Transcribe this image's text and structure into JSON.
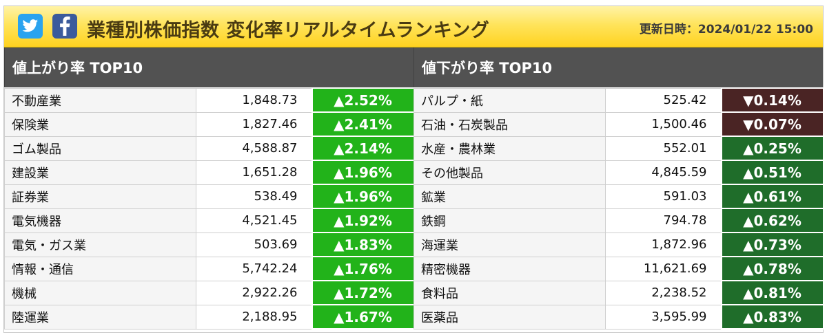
{
  "header": {
    "title": "業種別株価指数 変化率リアルタイムランキング",
    "updated": "更新日時：2024/01/22 15:00",
    "icons": [
      "twitter-icon",
      "facebook-icon"
    ]
  },
  "gainers": {
    "heading": "値上がり率 TOP10",
    "rows": [
      {
        "name": "不動産業",
        "value": "1,848.73",
        "change": "▲2.52%"
      },
      {
        "name": "保険業",
        "value": "1,827.46",
        "change": "▲2.41%"
      },
      {
        "name": "ゴム製品",
        "value": "4,588.87",
        "change": "▲2.14%"
      },
      {
        "name": "建設業",
        "value": "1,651.28",
        "change": "▲1.96%"
      },
      {
        "name": "証券業",
        "value": "538.49",
        "change": "▲1.96%"
      },
      {
        "name": "電気機器",
        "value": "4,521.45",
        "change": "▲1.92%"
      },
      {
        "name": "電気・ガス業",
        "value": "503.69",
        "change": "▲1.83%"
      },
      {
        "name": "情報・通信",
        "value": "5,742.24",
        "change": "▲1.76%"
      },
      {
        "name": "機械",
        "value": "2,922.26",
        "change": "▲1.72%"
      },
      {
        "name": "陸運業",
        "value": "2,188.95",
        "change": "▲1.67%"
      }
    ]
  },
  "losers": {
    "heading": "値下がり率 TOP10",
    "rows": [
      {
        "name": "パルプ・紙",
        "value": "525.42",
        "change": "▼0.14%",
        "dir": "down"
      },
      {
        "name": "石油・石炭製品",
        "value": "1,500.46",
        "change": "▼0.07%",
        "dir": "down"
      },
      {
        "name": "水産・農林業",
        "value": "552.01",
        "change": "▲0.25%",
        "dir": "up"
      },
      {
        "name": "その他製品",
        "value": "4,845.59",
        "change": "▲0.51%",
        "dir": "up"
      },
      {
        "name": "鉱業",
        "value": "591.03",
        "change": "▲0.61%",
        "dir": "up"
      },
      {
        "name": "鉄鋼",
        "value": "794.78",
        "change": "▲0.62%",
        "dir": "up"
      },
      {
        "name": "海運業",
        "value": "1,872.96",
        "change": "▲0.73%",
        "dir": "up"
      },
      {
        "name": "精密機器",
        "value": "11,621.69",
        "change": "▲0.78%",
        "dir": "up"
      },
      {
        "name": "食料品",
        "value": "2,238.52",
        "change": "▲0.81%",
        "dir": "up"
      },
      {
        "name": "医薬品",
        "value": "3,595.99",
        "change": "▲0.83%",
        "dir": "up"
      }
    ]
  },
  "colors": {
    "gainer_change_bg": "#22b31a",
    "loser_up_bg": "#1f6d2a",
    "loser_down_bg": "#4a2424",
    "header_bar": "#ffd21f",
    "panel_header": "#525252"
  }
}
